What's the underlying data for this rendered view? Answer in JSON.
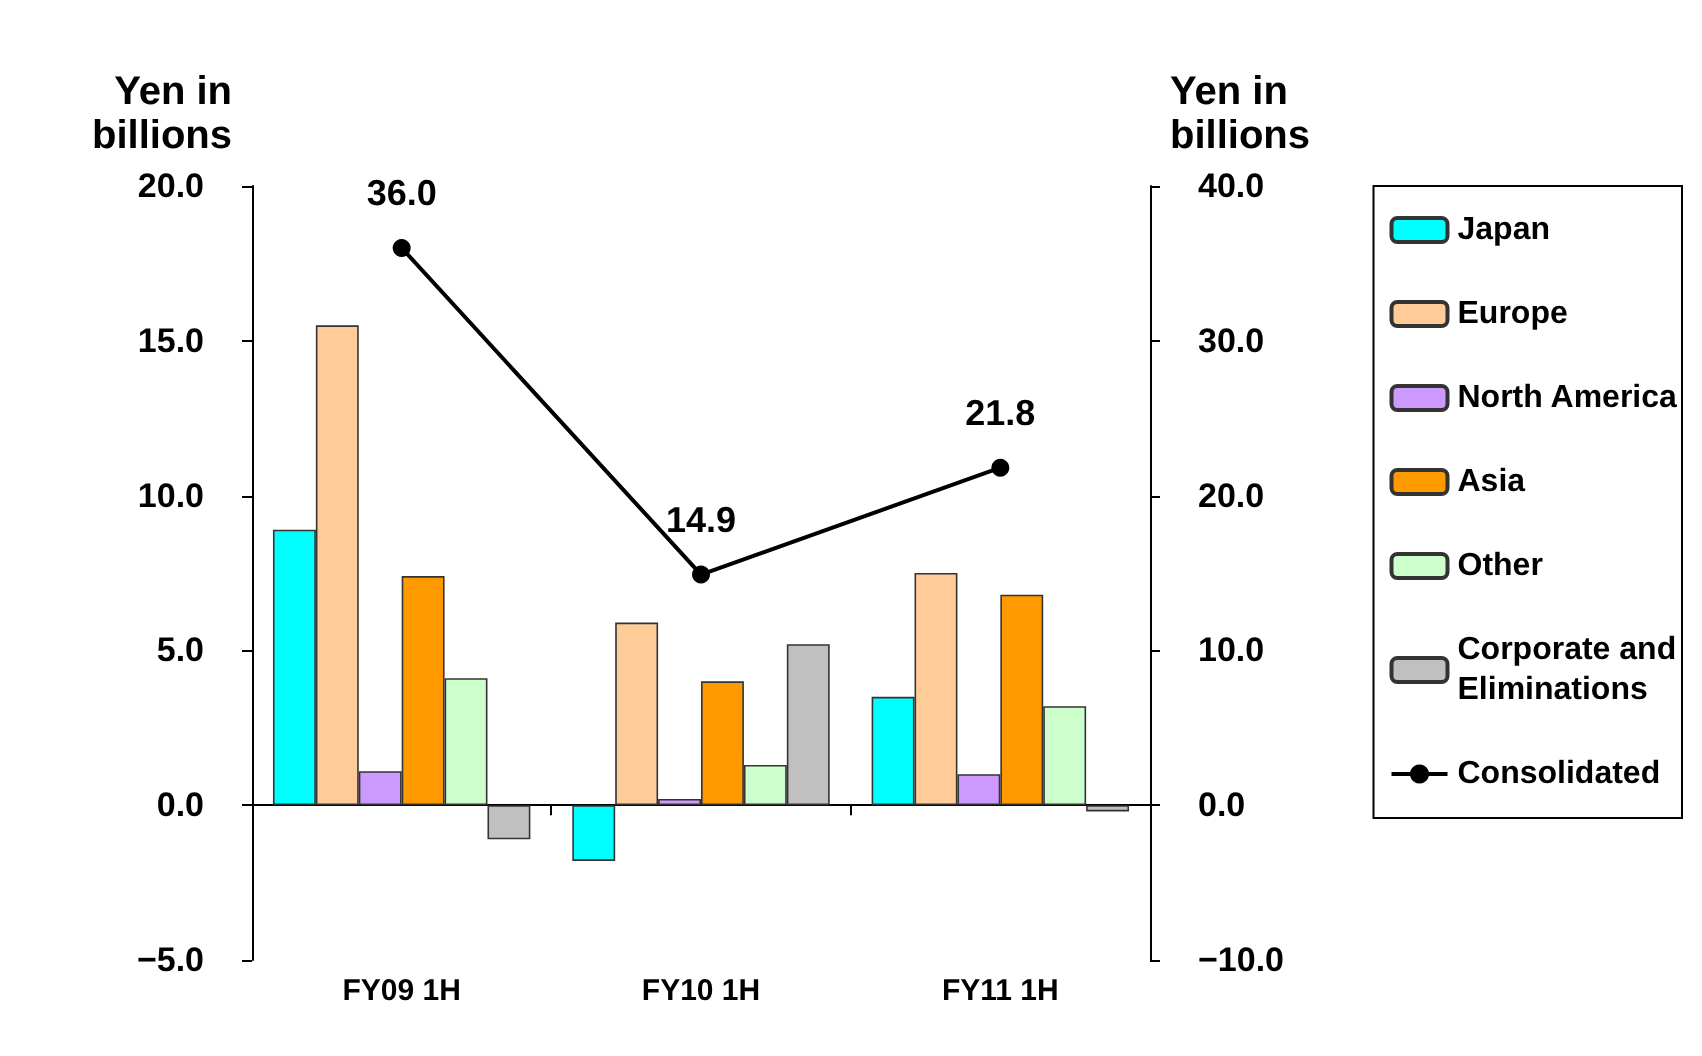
{
  "chart_data": {
    "type": "bar",
    "ylabel": "Yen in\nbillions",
    "y2label": "Yen in\nbillions",
    "categories": [
      "FY09 1H",
      "FY10 1H",
      "FY11 1H"
    ],
    "series": [
      {
        "name": "Japan",
        "color": "#00ffff",
        "values": [
          8.9,
          -1.8,
          3.5
        ]
      },
      {
        "name": "Europe",
        "color": "#ffcc99",
        "values": [
          15.5,
          5.9,
          7.5
        ]
      },
      {
        "name": "North America",
        "color": "#cc99ff",
        "values": [
          1.1,
          0.2,
          1.0
        ]
      },
      {
        "name": "Asia",
        "color": "#ff9900",
        "values": [
          7.4,
          4.0,
          6.8
        ]
      },
      {
        "name": "Other",
        "color": "#ccffcc",
        "values": [
          4.1,
          1.3,
          3.2
        ]
      },
      {
        "name": "Corporate and\nEliminations",
        "color": "#c0c0c0",
        "values": [
          -1.1,
          5.2,
          -0.2
        ]
      },
      {
        "name": "Consolidated",
        "type": "line",
        "axis": "y2",
        "color": "#000000",
        "values": [
          36.0,
          14.9,
          21.8
        ],
        "value_labels": [
          "36.0",
          "14.9",
          "21.8"
        ],
        "marker": "circle"
      }
    ],
    "ylim": [
      -5,
      20
    ],
    "yticks": [
      {
        "value": -5,
        "label": "−5.0"
      },
      {
        "value": 0,
        "label": "0.0"
      },
      {
        "value": 5,
        "label": "5.0"
      },
      {
        "value": 10,
        "label": "10.0"
      },
      {
        "value": 15,
        "label": "15.0"
      },
      {
        "value": 20,
        "label": "20.0"
      }
    ],
    "y2lim": [
      -10,
      40
    ],
    "y2ticks": [
      {
        "value": -10,
        "label": "−10.0"
      },
      {
        "value": 0,
        "label": "0.0"
      },
      {
        "value": 10,
        "label": "10.0"
      },
      {
        "value": 20,
        "label": "20.0"
      },
      {
        "value": 30,
        "label": "30.0"
      },
      {
        "value": 40,
        "label": "40.0"
      }
    ],
    "legend": "right"
  }
}
